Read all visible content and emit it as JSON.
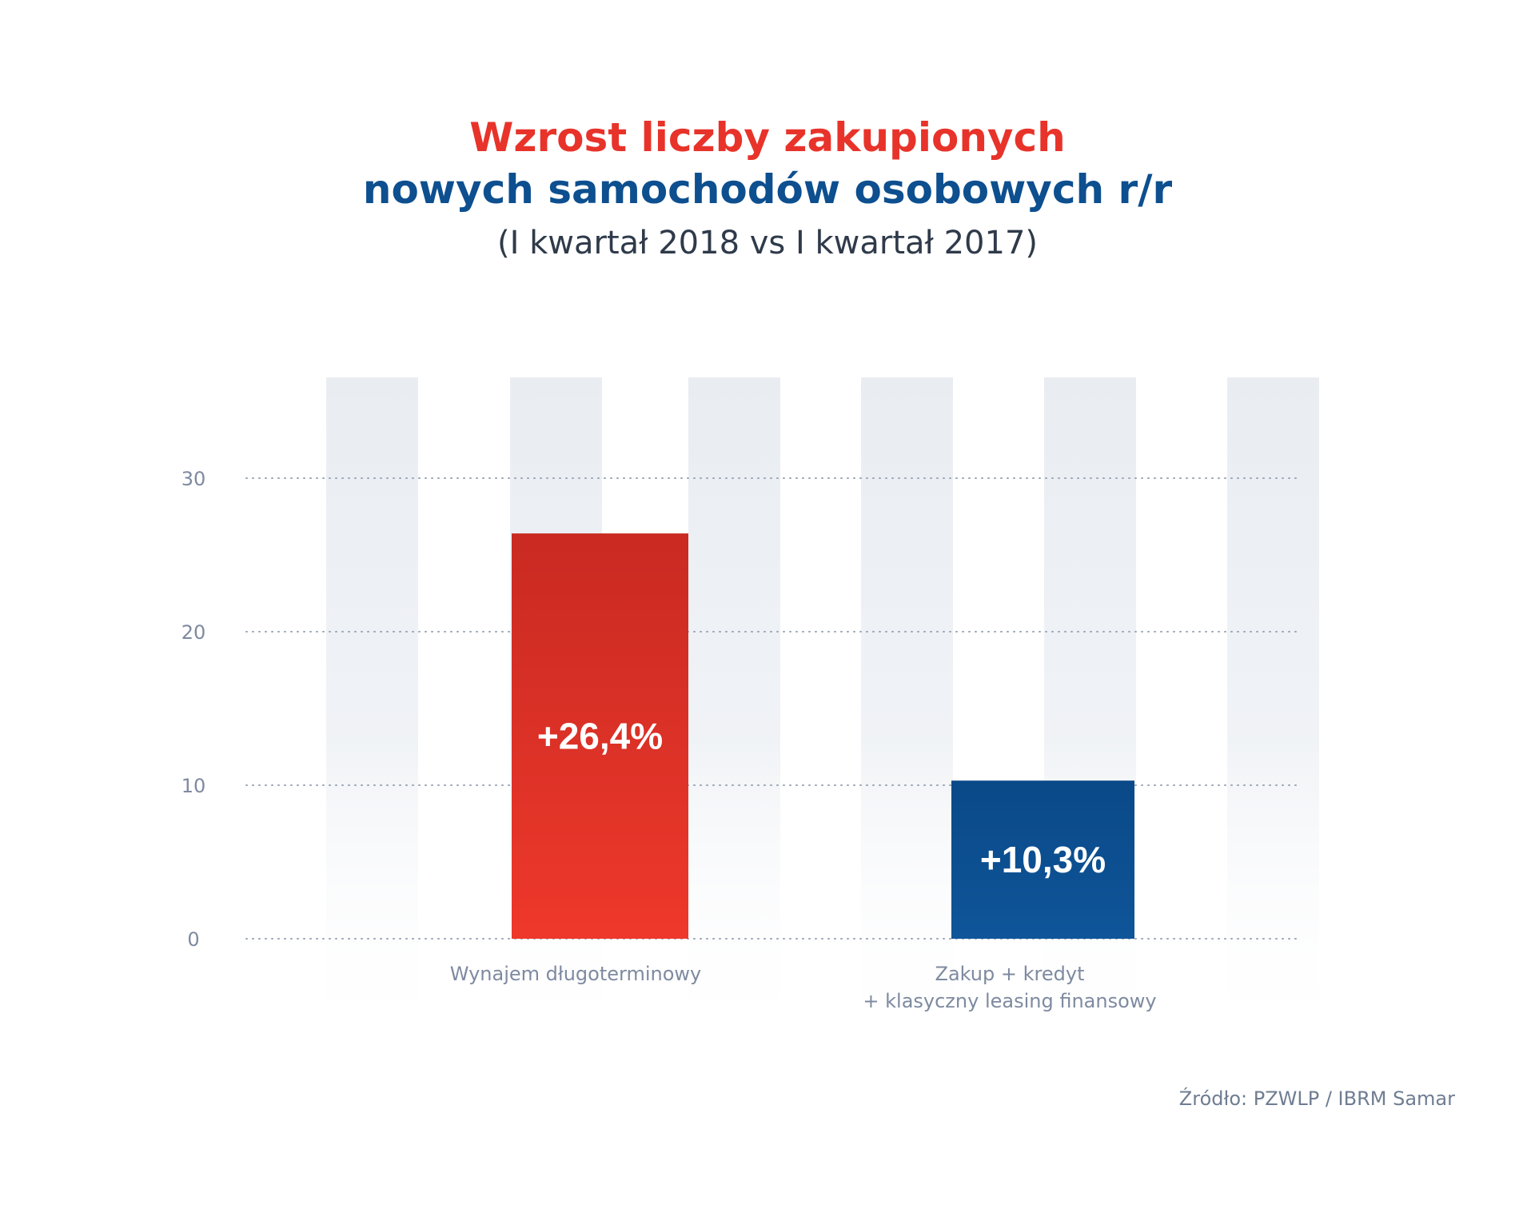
{
  "header": {
    "title_line1": "Wzrost liczby zakupionych",
    "title_line2": "nowych samochodów osobowych r/r",
    "subtitle": "(I kwartał 2018 vs I kwartał 2017)"
  },
  "footer": {
    "source": "Źródło: PZWLP / IBRM Samar"
  },
  "chart_data": {
    "type": "bar",
    "title": "Wzrost liczby zakupionych nowych samochodów osobowych r/r",
    "subtitle": "(I kwartał 2018 vs I kwartał 2017)",
    "categories": [
      [
        "Wynajem długoterminowy"
      ],
      [
        "Zakup + kredyt",
        "+ klasyczny leasing finansowy"
      ]
    ],
    "values": [
      26.4,
      10.3
    ],
    "data_labels": [
      "+26,4%",
      "+10,3%"
    ],
    "bar_colors": [
      "#e8352a",
      "#0d4f8f"
    ],
    "y_ticks": [
      0,
      10,
      20,
      30
    ],
    "ylim": [
      0,
      36
    ],
    "grid": true,
    "xlabel": "",
    "ylabel": ""
  },
  "colors": {
    "title_red": "#e8332a",
    "title_blue": "#0d4f8f",
    "bar_red_top": "#c92a22",
    "bar_red_bottom": "#ee382b",
    "bar_blue_top": "#0a4988",
    "bar_blue_bottom": "#0f5599",
    "grid_dots": "#9aa5b5",
    "column_bg": "#e9edf2",
    "axis_text": "#7e8aa0"
  }
}
